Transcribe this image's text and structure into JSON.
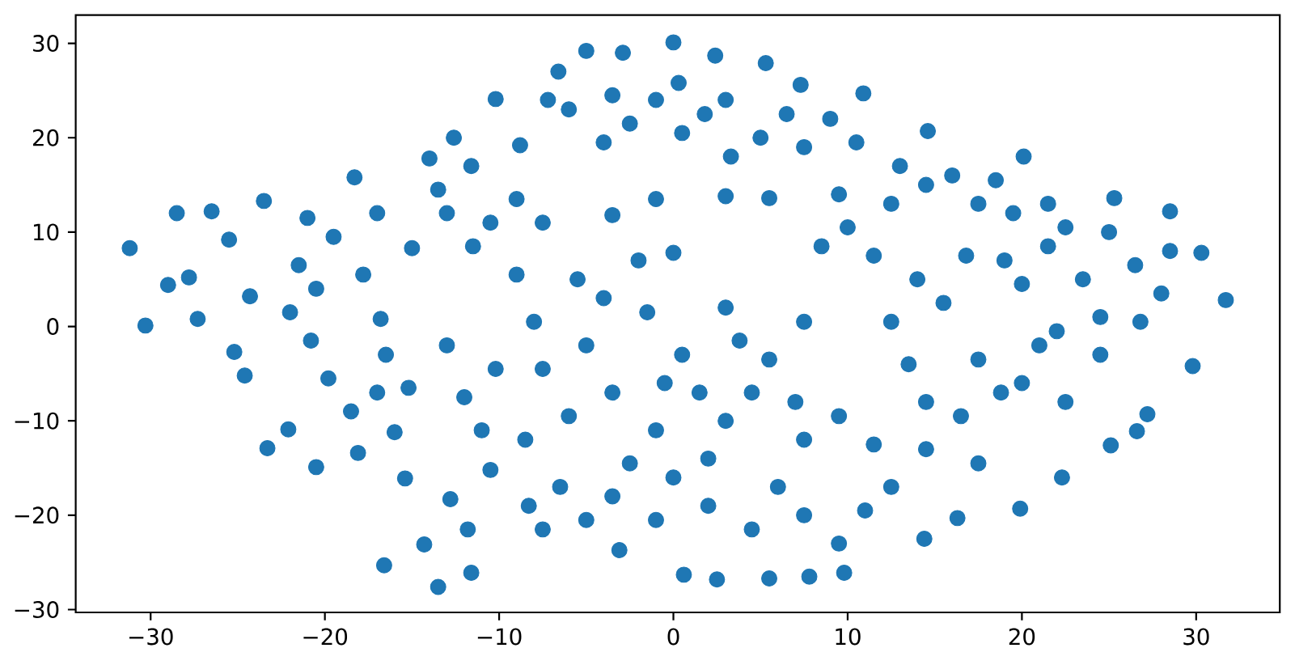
{
  "chart_data": {
    "type": "scatter",
    "x": [
      -31.2,
      -30.3,
      -28.5,
      -29.0,
      -27.3,
      -26.5,
      -25.2,
      -24.6,
      -23.3,
      -22.1,
      -20.5,
      -18.1,
      -16.6,
      -14.3,
      -15.4,
      -13.5,
      -11.6,
      -11.8,
      -12.8,
      0.0,
      -5.0,
      -2.9,
      2.4,
      5.3,
      -6.6,
      -10.2,
      -7.2,
      10.9,
      7.3,
      31.7,
      29.8,
      27.2,
      30.3,
      28.5,
      25.3,
      20.1,
      14.6,
      0.6,
      2.5,
      5.5,
      7.8,
      9.8,
      -3.1,
      19.9,
      16.3,
      14.4,
      22.3,
      25.1,
      26.6,
      -27.8,
      -25.5,
      -23.5,
      -24.3,
      -22.0,
      -21.5,
      -21.0,
      -19.5,
      -20.5,
      -20.8,
      -19.8,
      -18.5,
      -17.0,
      -18.3,
      -17.0,
      -17.8,
      -16.8,
      -16.5,
      -15.2,
      -16.0,
      -15.0,
      -14.0,
      -13.0,
      -13.5,
      -11.6,
      -11.5,
      -12.6,
      -10.5,
      -9.0,
      -8.8,
      -7.5,
      -13.0,
      -12.0,
      -11.0,
      -10.2,
      -10.5,
      -8.5,
      -8.3,
      -7.5,
      -6.5,
      -6.0,
      -7.5,
      -8.0,
      -5.5,
      -9.0,
      -5.0,
      -3.5,
      -4.0,
      -2.0,
      -3.5,
      -6.0,
      -3.5,
      -2.5,
      -1.0,
      0.3,
      0.5,
      1.8,
      3.0,
      3.3,
      5.0,
      6.5,
      7.5,
      9.0,
      10.5,
      -4.0,
      3.0,
      -1.0,
      0.0,
      5.5,
      13.0,
      14.5,
      16.0,
      17.5,
      18.5,
      19.5,
      21.5,
      22.5,
      16.8,
      19.0,
      20.0,
      21.5,
      23.5,
      25.0,
      26.5,
      28.5,
      28.0,
      26.8,
      24.5,
      22.0,
      24.5,
      21.0,
      20.0,
      22.5,
      18.8,
      17.5,
      15.5,
      14.0,
      12.5,
      10.0,
      11.5,
      9.5,
      8.5,
      12.5,
      0.5,
      1.5,
      3.0,
      2.0,
      4.5,
      5.5,
      7.0,
      7.5,
      9.5,
      11.5,
      12.5,
      14.5,
      13.5,
      16.5,
      17.5,
      11.0,
      9.5,
      7.5,
      6.0,
      4.5,
      2.0,
      0.0,
      -1.0,
      -2.5,
      -3.5,
      -5.0,
      -1.0,
      -0.5,
      3.0,
      7.5,
      -1.5,
      3.8,
      14.5
    ],
    "values": [
      8.3,
      0.1,
      12.0,
      4.4,
      0.8,
      12.2,
      -2.7,
      -5.2,
      -12.9,
      -10.9,
      -14.9,
      -13.4,
      -25.3,
      -23.1,
      -16.1,
      -27.6,
      -26.1,
      -21.5,
      -18.3,
      30.1,
      29.2,
      29.0,
      28.7,
      27.9,
      27.0,
      24.1,
      24.0,
      24.7,
      25.6,
      2.8,
      -4.2,
      -9.3,
      7.8,
      12.2,
      13.6,
      18.0,
      20.7,
      -26.3,
      -26.8,
      -26.7,
      -26.5,
      -26.1,
      -23.7,
      -19.3,
      -20.3,
      -22.5,
      -16.0,
      -12.6,
      -11.1,
      5.2,
      9.2,
      13.3,
      3.2,
      1.5,
      6.5,
      11.5,
      9.5,
      4.0,
      -1.5,
      -5.5,
      -9.0,
      -7.0,
      15.8,
      12.0,
      5.5,
      0.8,
      -3.0,
      -6.5,
      -11.2,
      8.3,
      17.8,
      12.0,
      14.5,
      17.0,
      8.5,
      20.0,
      11.0,
      13.5,
      19.2,
      11.0,
      -2.0,
      -7.5,
      -11.0,
      -4.5,
      -15.2,
      -12.0,
      -19.0,
      -21.5,
      -17.0,
      -9.5,
      -4.5,
      0.5,
      5.0,
      5.5,
      -2.0,
      -7.0,
      3.0,
      7.0,
      11.8,
      23.0,
      24.5,
      21.5,
      24.0,
      25.8,
      20.5,
      22.5,
      24.0,
      18.0,
      20.0,
      22.5,
      19.0,
      22.0,
      19.5,
      19.5,
      13.8,
      13.5,
      7.8,
      13.6,
      17.0,
      15.0,
      16.0,
      13.0,
      15.5,
      12.0,
      13.0,
      10.5,
      7.5,
      7.0,
      4.5,
      8.5,
      5.0,
      10.0,
      6.5,
      8.0,
      3.5,
      0.5,
      1.0,
      -0.5,
      -3.0,
      -2.0,
      -6.0,
      -8.0,
      -7.0,
      -3.5,
      2.5,
      5.0,
      0.5,
      10.5,
      7.5,
      14.0,
      8.5,
      13.0,
      -3.0,
      -7.0,
      -10.0,
      -14.0,
      -7.0,
      -3.5,
      -8.0,
      -12.0,
      -9.5,
      -12.5,
      -17.0,
      -8.0,
      -4.0,
      -9.5,
      -14.5,
      -19.5,
      -23.0,
      -20.0,
      -17.0,
      -21.5,
      -19.0,
      -16.0,
      -11.0,
      -14.5,
      -18.0,
      -20.5,
      -20.5,
      -6.0,
      2.0,
      0.5,
      1.5,
      -1.5,
      -13.0
    ],
    "color": "#1f77b4",
    "marker": "circle",
    "xlim": [
      -34.3,
      34.8
    ],
    "ylim": [
      -30.3,
      33.0
    ],
    "xticks": [
      {
        "value": -30,
        "label": "−30"
      },
      {
        "value": -20,
        "label": "−20"
      },
      {
        "value": -10,
        "label": "−10"
      },
      0,
      10,
      20,
      30
    ],
    "yticks": [
      {
        "value": -30,
        "label": "−30"
      },
      {
        "value": -20,
        "label": "−20"
      },
      {
        "value": -10,
        "label": "−10"
      },
      0,
      10,
      20,
      30
    ]
  }
}
